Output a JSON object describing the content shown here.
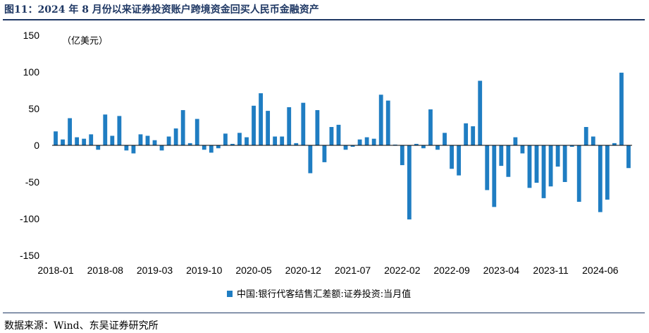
{
  "header": {
    "title": "图11：2024 年 8 月份以来证券投资账户跨境资金回买人民币金融资产"
  },
  "footer": {
    "source": "数据来源：Wind、东吴证券研究所"
  },
  "chart_data": {
    "type": "bar",
    "unit_label": "（亿美元）",
    "ylim": [
      -150,
      150
    ],
    "yticks": [
      150,
      100,
      50,
      0,
      -50,
      -100,
      -150
    ],
    "grid": false,
    "legend_position": "bottom-center",
    "x_tick_labels": [
      "2018-01",
      "2018-08",
      "2019-03",
      "2019-10",
      "2020-05",
      "2020-12",
      "2021-07",
      "2022-02",
      "2022-09",
      "2023-04",
      "2023-11",
      "2024-06"
    ],
    "categories": [
      "2018-01",
      "2018-02",
      "2018-03",
      "2018-04",
      "2018-05",
      "2018-06",
      "2018-07",
      "2018-08",
      "2018-09",
      "2018-10",
      "2018-11",
      "2018-12",
      "2019-01",
      "2019-02",
      "2019-03",
      "2019-04",
      "2019-05",
      "2019-06",
      "2019-07",
      "2019-08",
      "2019-09",
      "2019-10",
      "2019-11",
      "2019-12",
      "2020-01",
      "2020-02",
      "2020-03",
      "2020-04",
      "2020-05",
      "2020-06",
      "2020-07",
      "2020-08",
      "2020-09",
      "2020-10",
      "2020-11",
      "2020-12",
      "2021-01",
      "2021-02",
      "2021-03",
      "2021-04",
      "2021-05",
      "2021-06",
      "2021-07",
      "2021-08",
      "2021-09",
      "2021-10",
      "2021-11",
      "2021-12",
      "2022-01",
      "2022-02",
      "2022-03",
      "2022-04",
      "2022-05",
      "2022-06",
      "2022-07",
      "2022-08",
      "2022-09",
      "2022-10",
      "2022-11",
      "2022-12",
      "2023-01",
      "2023-02",
      "2023-03",
      "2023-04",
      "2023-05",
      "2023-06",
      "2023-07",
      "2023-08",
      "2023-09",
      "2023-10",
      "2023-11",
      "2023-12",
      "2024-01",
      "2024-02",
      "2024-03",
      "2024-04",
      "2024-05",
      "2024-06",
      "2024-07",
      "2024-08",
      "2024-09",
      "2024-10"
    ],
    "series": [
      {
        "name": "中国:银行代客结售汇差额:证券投资:当月值",
        "color": "#1f7dc2",
        "values": [
          19,
          8,
          37,
          11,
          9,
          15,
          -6,
          42,
          13,
          40,
          -7,
          -11,
          15,
          13,
          7,
          -7,
          12,
          23,
          48,
          3,
          36,
          -6,
          -10,
          -4,
          16,
          2,
          17,
          11,
          54,
          71,
          47,
          12,
          12,
          52,
          3,
          58,
          -38,
          48,
          -23,
          25,
          28,
          -6,
          -2,
          8,
          11,
          9,
          69,
          61,
          1,
          -27,
          -101,
          2,
          -4,
          49,
          -6,
          17,
          -32,
          -41,
          30,
          26,
          88,
          -61,
          -84,
          -28,
          -43,
          11,
          -11,
          -58,
          -51,
          -72,
          -56,
          -29,
          -50,
          -2,
          -77,
          25,
          12,
          -91,
          -74,
          3,
          99,
          -31
        ]
      }
    ]
  }
}
